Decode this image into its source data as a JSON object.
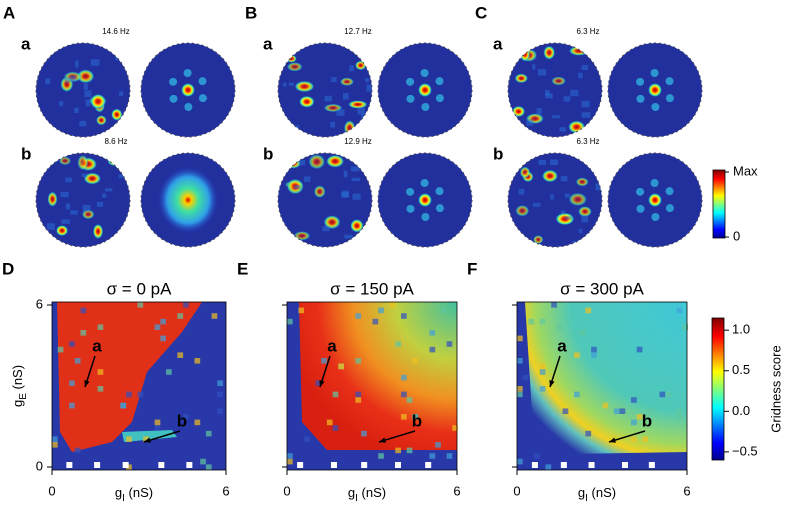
{
  "panels_top": [
    {
      "letter": "A",
      "rows": [
        {
          "label": "a",
          "rate": "14.6 Hz"
        },
        {
          "label": "b",
          "rate": "8.6 Hz"
        }
      ]
    },
    {
      "letter": "B",
      "rows": [
        {
          "label": "a",
          "rate": "12.7 Hz"
        },
        {
          "label": "b",
          "rate": "12.9 Hz"
        }
      ]
    },
    {
      "letter": "C",
      "rows": [
        {
          "label": "a",
          "rate": "6.3 Hz"
        },
        {
          "label": "b",
          "rate": "6.3 Hz"
        }
      ]
    }
  ],
  "rate_colorbar": {
    "max_label": "Max",
    "min_label": "0"
  },
  "chart_data": [
    {
      "type": "heatmap",
      "letter": "D",
      "title": "σ = 0 pA",
      "x_label": {
        "symbol": "g",
        "subscript": "I",
        "unit": " (nS)"
      },
      "y_label": {
        "symbol": "g",
        "subscript": "E",
        "unit": " (nS)"
      },
      "xlim": [
        0,
        6
      ],
      "xticks": [
        0,
        6
      ],
      "ylim": [
        0,
        6
      ],
      "yticks": [
        0,
        6
      ],
      "annotations": [
        "a",
        "b"
      ]
    },
    {
      "type": "heatmap",
      "letter": "E",
      "title": "σ = 150 pA",
      "x_label": {
        "symbol": "g",
        "subscript": "I",
        "unit": " (nS)"
      },
      "xlim": [
        0,
        6
      ],
      "xticks": [
        0,
        6
      ],
      "ylim": [
        0,
        6
      ],
      "yticks": [
        0,
        6
      ],
      "annotations": [
        "a",
        "b"
      ]
    },
    {
      "type": "heatmap",
      "letter": "F",
      "title": "σ = 300 pA",
      "x_label": {
        "symbol": "g",
        "subscript": "I",
        "unit": " (nS)"
      },
      "xlim": [
        0,
        6
      ],
      "xticks": [
        0,
        6
      ],
      "ylim": [
        0,
        6
      ],
      "yticks": [
        0,
        6
      ],
      "annotations": [
        "a",
        "b"
      ]
    }
  ],
  "gridness_colorbar": {
    "label": "Gridness score",
    "ylim": [
      -0.6,
      1.15
    ],
    "yticks": [
      {
        "value": 1,
        "label": "1.0"
      },
      0.5,
      {
        "value": 0,
        "label": "0.0"
      },
      {
        "value": -0.5,
        "label": "−0.5"
      }
    ]
  }
}
